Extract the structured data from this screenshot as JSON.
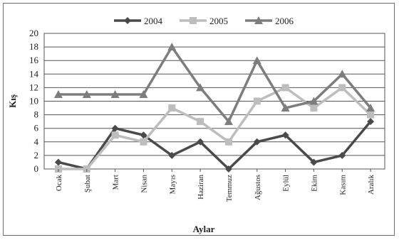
{
  "chart_data": {
    "type": "line",
    "xlabel": "Aylar",
    "ylabel": "Kış",
    "categories": [
      "Ocak",
      "Şubat",
      "Mart",
      "Nisan",
      "Mayıs",
      "Haziran",
      "Temmuz",
      "Ağustos",
      "Eylül",
      "Ekim",
      "Kasım",
      "Aralık"
    ],
    "ylim": [
      0,
      20
    ],
    "yticks": [
      0,
      2,
      4,
      6,
      8,
      10,
      12,
      14,
      16,
      18,
      20
    ],
    "grid": true,
    "legend_position": "top",
    "series": [
      {
        "name": "2004",
        "color": "#4a4a4a",
        "marker": "diamond",
        "values": [
          1,
          0,
          6,
          5,
          2,
          4,
          0,
          4,
          5,
          1,
          2,
          7
        ]
      },
      {
        "name": "2005",
        "color": "#bdbdbd",
        "marker": "square",
        "values": [
          0,
          0,
          5,
          4,
          9,
          7,
          4,
          10,
          12,
          9,
          12,
          8
        ]
      },
      {
        "name": "2006",
        "color": "#7d7d7d",
        "marker": "triangle",
        "values": [
          11,
          11,
          11,
          11,
          18,
          12,
          7,
          16,
          9,
          10,
          14,
          9
        ]
      }
    ]
  }
}
